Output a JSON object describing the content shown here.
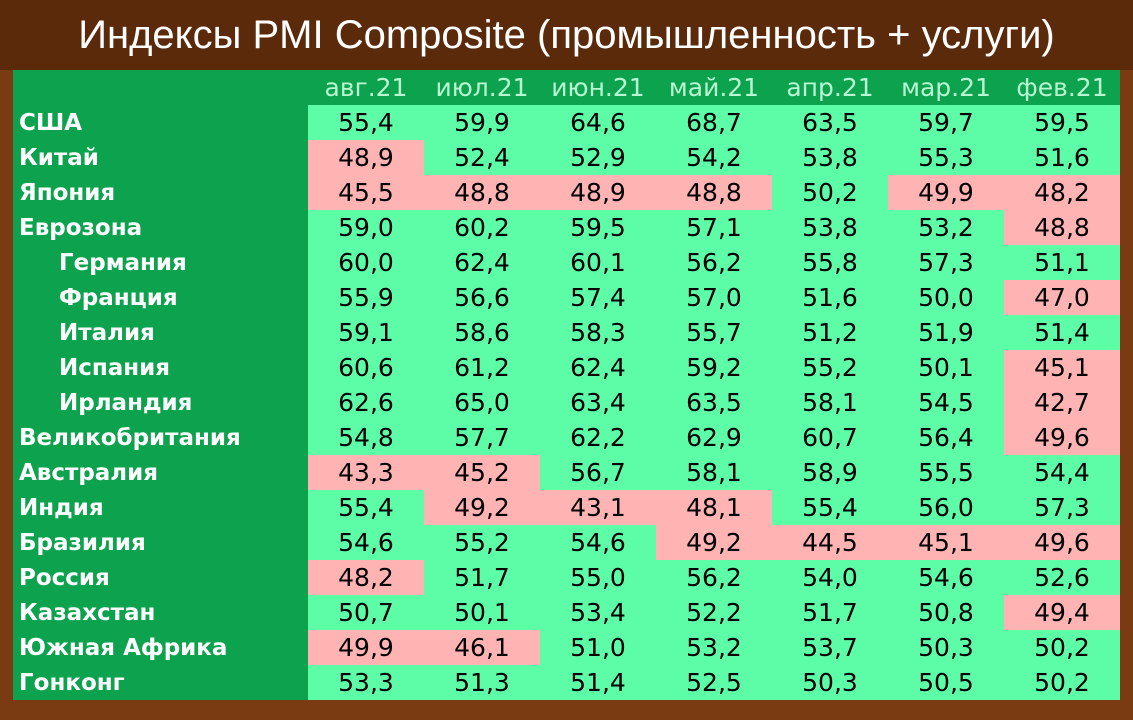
{
  "header": {
    "title": "Индексы PMI Composite (промышленность + услуги)"
  },
  "table": {
    "columns": [
      "авг.21",
      "июл.21",
      "июн.21",
      "май.21",
      "апр.21",
      "мар.21",
      "фев.21"
    ],
    "threshold": 50,
    "color_above": "#5dfda8",
    "color_below": "#ffb3b3",
    "rows": [
      {
        "name": "США",
        "indent": false,
        "values": [
          "55,4",
          "59,9",
          "64,6",
          "68,7",
          "63,5",
          "59,7",
          "59,5"
        ]
      },
      {
        "name": "Китай",
        "indent": false,
        "values": [
          "48,9",
          "52,4",
          "52,9",
          "54,2",
          "53,8",
          "55,3",
          "51,6"
        ]
      },
      {
        "name": "Япония",
        "indent": false,
        "values": [
          "45,5",
          "48,8",
          "48,9",
          "48,8",
          "50,2",
          "49,9",
          "48,2"
        ]
      },
      {
        "name": "Еврозона",
        "indent": false,
        "values": [
          "59,0",
          "60,2",
          "59,5",
          "57,1",
          "53,8",
          "53,2",
          "48,8"
        ]
      },
      {
        "name": "Германия",
        "indent": true,
        "values": [
          "60,0",
          "62,4",
          "60,1",
          "56,2",
          "55,8",
          "57,3",
          "51,1"
        ]
      },
      {
        "name": "Франция",
        "indent": true,
        "values": [
          "55,9",
          "56,6",
          "57,4",
          "57,0",
          "51,6",
          "50,0",
          "47,0"
        ]
      },
      {
        "name": "Италия",
        "indent": true,
        "values": [
          "59,1",
          "58,6",
          "58,3",
          "55,7",
          "51,2",
          "51,9",
          "51,4"
        ]
      },
      {
        "name": "Испания",
        "indent": true,
        "values": [
          "60,6",
          "61,2",
          "62,4",
          "59,2",
          "55,2",
          "50,1",
          "45,1"
        ]
      },
      {
        "name": "Ирландия",
        "indent": true,
        "values": [
          "62,6",
          "65,0",
          "63,4",
          "63,5",
          "58,1",
          "54,5",
          "42,7"
        ]
      },
      {
        "name": "Великобритания",
        "indent": false,
        "values": [
          "54,8",
          "57,7",
          "62,2",
          "62,9",
          "60,7",
          "56,4",
          "49,6"
        ]
      },
      {
        "name": "Австралия",
        "indent": false,
        "values": [
          "43,3",
          "45,2",
          "56,7",
          "58,1",
          "58,9",
          "55,5",
          "54,4"
        ]
      },
      {
        "name": "Индия",
        "indent": false,
        "values": [
          "55,4",
          "49,2",
          "43,1",
          "48,1",
          "55,4",
          "56,0",
          "57,3"
        ]
      },
      {
        "name": "Бразилия",
        "indent": false,
        "values": [
          "54,6",
          "55,2",
          "54,6",
          "49,2",
          "44,5",
          "45,1",
          "49,6"
        ]
      },
      {
        "name": "Россия",
        "indent": false,
        "values": [
          "48,2",
          "51,7",
          "55,0",
          "56,2",
          "54,0",
          "54,6",
          "52,6"
        ]
      },
      {
        "name": "Казахстан",
        "indent": false,
        "values": [
          "50,7",
          "50,1",
          "53,4",
          "52,2",
          "51,7",
          "50,8",
          "49,4"
        ]
      },
      {
        "name": "Южная Африка",
        "indent": false,
        "values": [
          "49,9",
          "46,1",
          "51,0",
          "53,2",
          "53,7",
          "50,3",
          "50,2"
        ]
      },
      {
        "name": "Гонконг",
        "indent": false,
        "values": [
          "53,3",
          "51,3",
          "51,4",
          "52,5",
          "50,3",
          "50,5",
          "50,2"
        ]
      }
    ]
  }
}
